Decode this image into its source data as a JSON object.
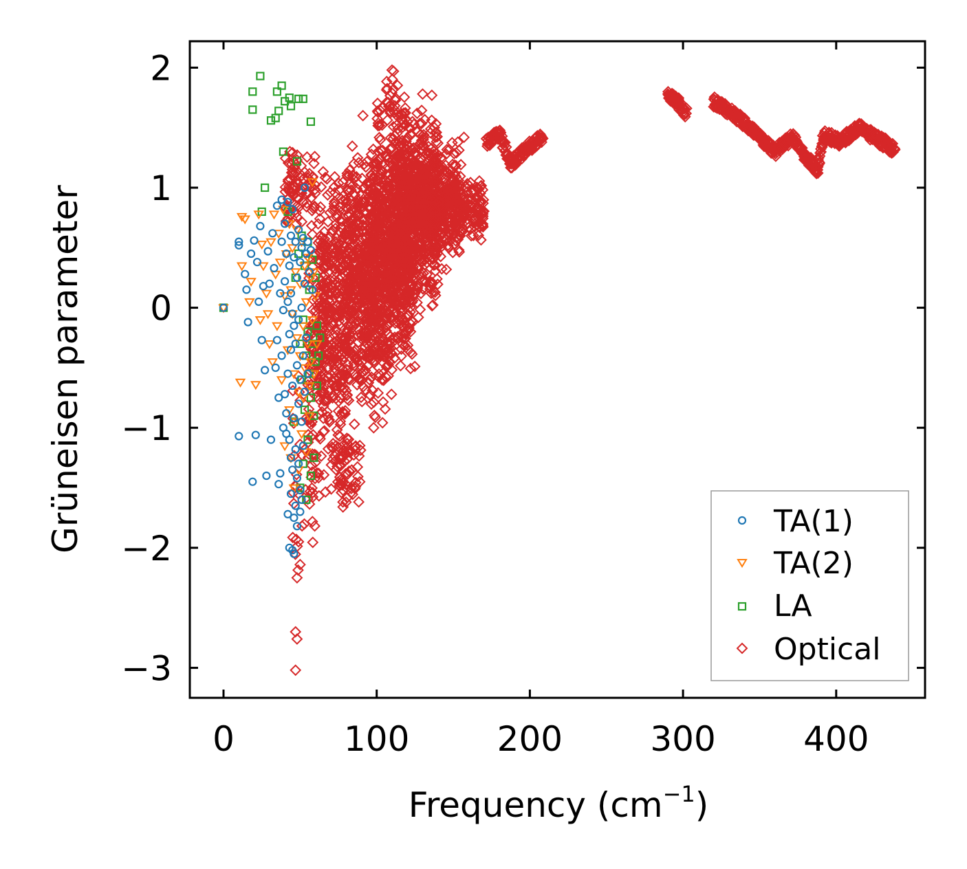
{
  "chart_data": {
    "type": "scatter",
    "title": "",
    "xlabel": "Frequency (cm",
    "xlabel_sup": "−1",
    "xlabel_close": ")",
    "ylabel": "Grüneisen parameter",
    "xlim": [
      -22,
      458
    ],
    "ylim": [
      -3.25,
      2.22
    ],
    "xticks": [
      0,
      100,
      200,
      300,
      400
    ],
    "xtick_labels": [
      "0",
      "100",
      "200",
      "300",
      "400"
    ],
    "yticks": [
      2,
      1,
      0,
      -1,
      -2,
      -3
    ],
    "ytick_labels": [
      "2",
      "1",
      "0",
      "−1",
      "−2",
      "−3"
    ],
    "grid": false,
    "legend_position": "lower-right",
    "series": [
      {
        "name": "TA(1)",
        "label": "TA(1)",
        "marker": "circle",
        "color": "#1f77b4",
        "points": [
          [
            0,
            0
          ],
          [
            10,
            0.52
          ],
          [
            10,
            0.55
          ],
          [
            10,
            -1.07
          ],
          [
            14,
            0.28
          ],
          [
            15,
            0.15
          ],
          [
            16,
            -0.12
          ],
          [
            18,
            0.45
          ],
          [
            19,
            -1.45
          ],
          [
            20,
            0.56
          ],
          [
            21,
            -1.06
          ],
          [
            22,
            0.38
          ],
          [
            23,
            0.05
          ],
          [
            24,
            0.68
          ],
          [
            25,
            -0.27
          ],
          [
            26,
            0.18
          ],
          [
            27,
            -0.52
          ],
          [
            28,
            -1.4
          ],
          [
            29,
            0.47
          ],
          [
            30,
            0.2
          ],
          [
            31,
            -1.1
          ],
          [
            32,
            0.62
          ],
          [
            33,
            0.33
          ],
          [
            34,
            -0.5
          ],
          [
            35,
            0.85
          ],
          [
            35,
            -0.27
          ],
          [
            36,
            -0.75
          ],
          [
            36,
            -1.47
          ],
          [
            37,
            0.12
          ],
          [
            37,
            -1.38
          ],
          [
            38,
            0.9
          ],
          [
            38,
            0.55
          ],
          [
            38,
            -0.4
          ],
          [
            39,
            -0.02
          ],
          [
            39,
            -1.0
          ],
          [
            40,
            0.7
          ],
          [
            40,
            0.22
          ],
          [
            40,
            -0.72
          ],
          [
            41,
            0.45
          ],
          [
            41,
            -0.88
          ],
          [
            41,
            -1.05
          ],
          [
            42,
            0.88
          ],
          [
            42,
            0.05
          ],
          [
            42,
            -0.55
          ],
          [
            42,
            -1.72
          ],
          [
            43,
            0.35
          ],
          [
            43,
            -0.22
          ],
          [
            43,
            -1.1
          ],
          [
            43,
            -2.0
          ],
          [
            44,
            0.6
          ],
          [
            44,
            0.12
          ],
          [
            44,
            -0.35
          ],
          [
            44,
            -1.25
          ],
          [
            44,
            -1.55
          ],
          [
            45,
            0.82
          ],
          [
            45,
            -0.05
          ],
          [
            45,
            -0.65
          ],
          [
            45,
            -1.35
          ],
          [
            45,
            -2.02
          ],
          [
            46,
            0.42
          ],
          [
            46,
            -0.15
          ],
          [
            46,
            -0.92
          ],
          [
            46,
            -1.75
          ],
          [
            46,
            -2.05
          ],
          [
            47,
            0.55
          ],
          [
            47,
            -0.3
          ],
          [
            47,
            -1.18
          ],
          [
            47,
            -1.65
          ],
          [
            48,
            0.25
          ],
          [
            48,
            -0.48
          ],
          [
            48,
            -1.42
          ],
          [
            48,
            -1.82
          ],
          [
            49,
            0.65
          ],
          [
            49,
            -0.1
          ],
          [
            49,
            -0.8
          ],
          [
            49,
            -1.3
          ],
          [
            50,
            0.38
          ],
          [
            50,
            -0.6
          ],
          [
            50,
            -1.52
          ],
          [
            50,
            -1.7
          ],
          [
            51,
            0.5
          ],
          [
            51,
            0.0
          ],
          [
            51,
            -0.95
          ],
          [
            51,
            -1.6
          ],
          [
            52,
            0.58
          ],
          [
            52,
            -0.4
          ],
          [
            52,
            -1.15
          ],
          [
            53,
            1.0
          ],
          [
            53,
            0.2
          ],
          [
            53,
            -0.7
          ],
          [
            54,
            0.45
          ],
          [
            54,
            -0.25
          ],
          [
            55,
            0.55
          ],
          [
            55,
            -0.55
          ],
          [
            56,
            0.3
          ],
          [
            57,
            0.48
          ],
          [
            58,
            0.15
          ]
        ]
      },
      {
        "name": "TA(2)",
        "label": "TA(2)",
        "marker": "triangle-down",
        "color": "#ff7f0e",
        "points": [
          [
            0,
            0
          ],
          [
            11,
            -0.62
          ],
          [
            12,
            0.35
          ],
          [
            12,
            0.76
          ],
          [
            14,
            0.74
          ],
          [
            17,
            0.05
          ],
          [
            18,
            0.22
          ],
          [
            21,
            -0.64
          ],
          [
            23,
            0.78
          ],
          [
            24,
            -0.1
          ],
          [
            25,
            0.53
          ],
          [
            26,
            0.35
          ],
          [
            28,
            0.12
          ],
          [
            29,
            -0.05
          ],
          [
            30,
            -0.3
          ],
          [
            31,
            0.55
          ],
          [
            32,
            -0.45
          ],
          [
            33,
            0.78
          ],
          [
            34,
            0.28
          ],
          [
            35,
            -0.15
          ],
          [
            36,
            0.62
          ],
          [
            37,
            0.38
          ],
          [
            38,
            -0.6
          ],
          [
            39,
            0.82
          ],
          [
            40,
            0.1
          ],
          [
            40,
            -1.15
          ],
          [
            41,
            0.45
          ],
          [
            42,
            -0.35
          ],
          [
            43,
            0.7
          ],
          [
            43,
            -0.85
          ],
          [
            44,
            0.15
          ],
          [
            44,
            -1.25
          ],
          [
            45,
            0.5
          ],
          [
            45,
            -0.05
          ],
          [
            46,
            -0.55
          ],
          [
            46,
            -1.5
          ],
          [
            47,
            0.3
          ],
          [
            47,
            -0.95
          ],
          [
            48,
            0.65
          ],
          [
            48,
            -0.25
          ],
          [
            49,
            -0.7
          ],
          [
            49,
            -1.35
          ],
          [
            50,
            0.2
          ],
          [
            50,
            -0.4
          ],
          [
            51,
            0.55
          ],
          [
            51,
            -1.05
          ],
          [
            52,
            -0.15
          ],
          [
            52,
            -0.75
          ],
          [
            53,
            0.35
          ],
          [
            53,
            -0.5
          ],
          [
            54,
            0.05
          ],
          [
            54,
            -1.2
          ],
          [
            55,
            0.42
          ],
          [
            55,
            -0.3
          ],
          [
            56,
            -0.65
          ],
          [
            56,
            -0.9
          ],
          [
            57,
            0.25
          ],
          [
            57,
            -0.45
          ],
          [
            58,
            1.05
          ],
          [
            58,
            -0.1
          ],
          [
            59,
            0.3
          ],
          [
            59,
            -0.55
          ],
          [
            60,
            0.1
          ],
          [
            61,
            -0.3
          ]
        ]
      },
      {
        "name": "LA",
        "label": "LA",
        "marker": "square",
        "color": "#2ca02c",
        "points": [
          [
            0,
            0
          ],
          [
            19,
            1.8
          ],
          [
            19,
            1.65
          ],
          [
            24,
            1.93
          ],
          [
            25,
            0.8
          ],
          [
            27,
            1.0
          ],
          [
            31,
            1.56
          ],
          [
            34,
            1.58
          ],
          [
            35,
            1.8
          ],
          [
            36,
            1.64
          ],
          [
            38,
            1.85
          ],
          [
            39,
            1.3
          ],
          [
            40,
            1.72
          ],
          [
            42,
            0.8
          ],
          [
            43,
            1.75
          ],
          [
            44,
            1.68
          ],
          [
            46,
            -0.95
          ],
          [
            47,
            0.25
          ],
          [
            48,
            1.22
          ],
          [
            49,
            1.74
          ],
          [
            49,
            0.45
          ],
          [
            50,
            -0.3
          ],
          [
            50,
            -1.5
          ],
          [
            51,
            0.6
          ],
          [
            51,
            -0.6
          ],
          [
            52,
            1.74
          ],
          [
            52,
            -0.1
          ],
          [
            52,
            -1.3
          ],
          [
            53,
            0.35
          ],
          [
            53,
            -0.85
          ],
          [
            54,
            -0.4
          ],
          [
            54,
            -1.6
          ],
          [
            55,
            0.55
          ],
          [
            55,
            -0.2
          ],
          [
            55,
            -1.1
          ],
          [
            56,
            0.15
          ],
          [
            56,
            -0.55
          ],
          [
            57,
            1.55
          ],
          [
            57,
            -0.75
          ],
          [
            57,
            -1.4
          ],
          [
            58,
            0.4
          ],
          [
            58,
            -0.3
          ],
          [
            59,
            -0.9
          ],
          [
            59,
            -1.25
          ],
          [
            60,
            0.25
          ],
          [
            60,
            -0.45
          ],
          [
            61,
            -0.65
          ],
          [
            61,
            -0.15
          ],
          [
            62,
            -0.4
          ],
          [
            63,
            -0.25
          ]
        ]
      },
      {
        "name": "Optical",
        "label": "Optical",
        "marker": "diamond",
        "color": "#d62728",
        "regions": [
          {
            "x": [
              55,
              82
            ],
            "y": [
              -1.7,
              1.0
            ],
            "n": 320
          },
          {
            "x": [
              62,
              98
            ],
            "y": [
              -0.8,
              1.3
            ],
            "n": 360
          },
          {
            "x": [
              80,
              110
            ],
            "y": [
              -1.05,
              1.4
            ],
            "n": 420
          },
          {
            "x": [
              95,
              125
            ],
            "y": [
              -0.6,
              1.55
            ],
            "n": 600
          },
          {
            "x": [
              110,
              140
            ],
            "y": [
              -0.1,
              1.7
            ],
            "n": 600
          },
          {
            "x": [
              125,
              155
            ],
            "y": [
              0.3,
              1.4
            ],
            "n": 320
          },
          {
            "x": [
              140,
              170
            ],
            "y": [
              0.55,
              1.1
            ],
            "n": 180
          },
          {
            "x": [
              100,
              120
            ],
            "y": [
              1.4,
              1.98
            ],
            "n": 40
          },
          {
            "x": [
              40,
              60
            ],
            "y": [
              0.6,
              1.35
            ],
            "n": 90
          },
          {
            "x": [
              45,
              60
            ],
            "y": [
              -2.3,
              -0.5
            ],
            "n": 40
          },
          {
            "x": [
              70,
              90
            ],
            "y": [
              -1.7,
              -1.0
            ],
            "n": 50
          }
        ],
        "points": [
          [
            47,
            -2.7
          ],
          [
            48,
            -2.76
          ],
          [
            47,
            -3.02
          ],
          [
            48,
            -2.25
          ],
          [
            50,
            -2.14
          ],
          [
            49,
            -1.95
          ],
          [
            78,
            -1.52
          ],
          [
            78,
            -1.66
          ],
          [
            80,
            -1.62
          ],
          [
            82,
            -1.2
          ],
          [
            110,
            1.98
          ],
          [
            111,
            1.82
          ],
          [
            91,
            1.6
          ],
          [
            111,
            1.97
          ],
          [
            136,
            1.77
          ],
          [
            130,
            1.78
          ],
          [
            118,
            1.62
          ],
          [
            113,
            1.52
          ],
          [
            157,
            1.42
          ],
          [
            153,
            1.38
          ],
          [
            100,
            1.0
          ],
          [
            98,
            -1.0
          ]
        ],
        "bands": [
          {
            "x": [
              170,
              210
            ],
            "y": [
              1.2,
              1.5
            ],
            "path": [
              [
                172,
                1.38
              ],
              [
                180,
                1.45
              ],
              [
                188,
                1.2
              ],
              [
                196,
                1.3
              ],
              [
                208,
                1.42
              ]
            ]
          },
          {
            "x": [
              290,
              302
            ],
            "y": [
              1.6,
              1.8
            ],
            "path": [
              [
                290,
                1.78
              ],
              [
                296,
                1.72
              ],
              [
                302,
                1.62
              ]
            ]
          },
          {
            "x": [
              320,
              440
            ],
            "y": [
              1.1,
              1.75
            ],
            "path": [
              [
                320,
                1.72
              ],
              [
                335,
                1.6
              ],
              [
                350,
                1.42
              ],
              [
                360,
                1.3
              ],
              [
                372,
                1.42
              ],
              [
                380,
                1.25
              ],
              [
                388,
                1.15
              ],
              [
                392,
                1.45
              ],
              [
                402,
                1.38
              ],
              [
                415,
                1.5
              ],
              [
                425,
                1.42
              ],
              [
                438,
                1.32
              ]
            ]
          }
        ]
      }
    ]
  }
}
